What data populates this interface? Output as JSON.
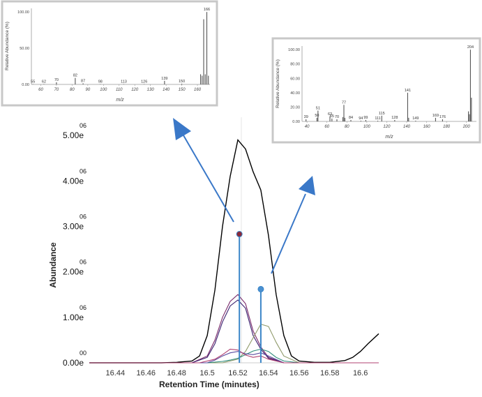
{
  "chart_data": [
    {
      "type": "line",
      "title": "",
      "xlabel": "Retention Time (minutes)",
      "ylabel": "Abundance",
      "xlim": [
        16.423,
        16.612
      ],
      "ylim": [
        0,
        5400000
      ],
      "x_ticks": [
        "16.44",
        "16.46",
        "16.48",
        "16.5",
        "16.52",
        "16.54",
        "16.56",
        "16.58",
        "16.6"
      ],
      "x_tick_values": [
        16.44,
        16.46,
        16.48,
        16.5,
        16.52,
        16.54,
        16.56,
        16.58,
        16.6
      ],
      "y_ticks": [
        {
          "value": 0,
          "mantissa": "0.00e",
          "exponent": "00"
        },
        {
          "value": 1000000,
          "mantissa": "1.00e",
          "exponent": "06"
        },
        {
          "value": 2000000,
          "mantissa": "2.00e",
          "exponent": "06"
        },
        {
          "value": 3000000,
          "mantissa": "3.00e",
          "exponent": "06"
        },
        {
          "value": 4000000,
          "mantissa": "4.00e",
          "exponent": "06"
        },
        {
          "value": 5000000,
          "mantissa": "5.00e",
          "exponent": "06"
        }
      ],
      "series": [
        {
          "color": "#000000",
          "x": [
            16.423,
            16.47,
            16.48,
            16.49,
            16.495,
            16.5,
            16.505,
            16.51,
            16.515,
            16.52,
            16.525,
            16.53,
            16.535,
            16.54,
            16.545,
            16.55,
            16.555,
            16.56,
            16.57,
            16.58,
            16.59,
            16.595,
            16.6,
            16.605,
            16.612
          ],
          "y": [
            0,
            0,
            10000,
            40000,
            150000,
            600000,
            1600000,
            3000000,
            4100000,
            4900000,
            4700000,
            4200000,
            3800000,
            2800000,
            1500000,
            600000,
            150000,
            40000,
            10000,
            10000,
            50000,
            120000,
            250000,
            420000,
            640000
          ]
        },
        {
          "color": "#7a2a6a",
          "x": [
            16.423,
            16.49,
            16.5,
            16.505,
            16.51,
            16.515,
            16.52,
            16.525,
            16.53,
            16.535,
            16.54,
            16.55,
            16.612
          ],
          "y": [
            0,
            0,
            150000,
            500000,
            1000000,
            1350000,
            1500000,
            1300000,
            700000,
            350000,
            120000,
            0,
            0
          ]
        },
        {
          "color": "#3a2070",
          "x": [
            16.423,
            16.49,
            16.5,
            16.505,
            16.51,
            16.515,
            16.52,
            16.525,
            16.53,
            16.535,
            16.54,
            16.55,
            16.612
          ],
          "y": [
            0,
            0,
            120000,
            420000,
            900000,
            1250000,
            1380000,
            1200000,
            600000,
            300000,
            100000,
            0,
            0
          ]
        },
        {
          "color": "#8f9a6a",
          "x": [
            16.423,
            16.51,
            16.52,
            16.525,
            16.53,
            16.535,
            16.54,
            16.545,
            16.55,
            16.56,
            16.612
          ],
          "y": [
            0,
            0,
            80000,
            250000,
            550000,
            850000,
            800000,
            450000,
            150000,
            0,
            0
          ]
        },
        {
          "color": "#2a8a7a",
          "x": [
            16.423,
            16.5,
            16.51,
            16.515,
            16.52,
            16.525,
            16.53,
            16.535,
            16.54,
            16.545,
            16.55,
            16.56,
            16.612
          ],
          "y": [
            0,
            0,
            30000,
            60000,
            100000,
            180000,
            260000,
            300000,
            250000,
            120000,
            40000,
            0,
            0
          ]
        },
        {
          "color": "#5a4aa0",
          "x": [
            16.423,
            16.5,
            16.505,
            16.51,
            16.515,
            16.52,
            16.525,
            16.53,
            16.535,
            16.54,
            16.55,
            16.612
          ],
          "y": [
            0,
            0,
            60000,
            150000,
            220000,
            250000,
            200000,
            180000,
            220000,
            150000,
            0,
            0
          ]
        },
        {
          "color": "#b04070",
          "x": [
            16.423,
            16.495,
            16.505,
            16.51,
            16.515,
            16.52,
            16.525,
            16.53,
            16.535,
            16.54,
            16.55,
            16.612
          ],
          "y": [
            0,
            0,
            80000,
            180000,
            300000,
            280000,
            170000,
            120000,
            150000,
            80000,
            0,
            0
          ]
        }
      ],
      "markers": [
        {
          "x": 16.521,
          "y": 2830000,
          "fill": "#8a2a3a",
          "stem": "#3b86c8"
        },
        {
          "x": 16.535,
          "y": 1620000,
          "fill": "#4a90d0",
          "stem": "#3b86c8"
        }
      ]
    },
    {
      "type": "bar",
      "title": "",
      "xlabel": "m/z",
      "ylabel": "Relative Abundance (%)",
      "xlim": [
        54,
        168
      ],
      "ylim": [
        0,
        105
      ],
      "x_ticks": [
        "60",
        "70",
        "80",
        "90",
        "100",
        "110",
        "120",
        "130",
        "140",
        "150",
        "160"
      ],
      "y_ticks": [
        "0.00",
        "50.00",
        "100.00"
      ],
      "peaks": [
        {
          "mz": 55,
          "value": 0.5,
          "label": "55"
        },
        {
          "mz": 62,
          "value": 0.6,
          "label": "62"
        },
        {
          "mz": 70,
          "value": 3,
          "label": "70"
        },
        {
          "mz": 82,
          "value": 9,
          "label": "82"
        },
        {
          "mz": 87,
          "value": 1.5,
          "label": "87"
        },
        {
          "mz": 98,
          "value": 0.5,
          "label": "98"
        },
        {
          "mz": 113,
          "value": 0.5,
          "label": "113"
        },
        {
          "mz": 126,
          "value": 0.5,
          "label": "126"
        },
        {
          "mz": 139,
          "value": 5,
          "label": "139"
        },
        {
          "mz": 150,
          "value": 1,
          "label": "150"
        },
        {
          "mz": 162,
          "value": 14,
          "label": ""
        },
        {
          "mz": 163,
          "value": 12,
          "label": ""
        },
        {
          "mz": 164,
          "value": 90,
          "label": ""
        },
        {
          "mz": 165,
          "value": 14,
          "label": ""
        },
        {
          "mz": 166,
          "value": 100,
          "label": "166"
        },
        {
          "mz": 167,
          "value": 12,
          "label": ""
        }
      ]
    },
    {
      "type": "bar",
      "title": "",
      "xlabel": "m/z",
      "ylabel": "Relative Abundance (%)",
      "xlim": [
        35,
        210
      ],
      "ylim": [
        0,
        105
      ],
      "x_ticks": [
        "40",
        "60",
        "80",
        "100",
        "120",
        "140",
        "160",
        "180",
        "200"
      ],
      "y_ticks": [
        "0.00",
        "20.00",
        "40.00",
        "60.00",
        "80.00",
        "100.00"
      ],
      "peaks": [
        {
          "mz": 39,
          "value": 3,
          "label": "39"
        },
        {
          "mz": 50,
          "value": 5,
          "label": "50"
        },
        {
          "mz": 51,
          "value": 15,
          "label": "51"
        },
        {
          "mz": 63,
          "value": 7,
          "label": "63"
        },
        {
          "mz": 65,
          "value": 4,
          "label": "65"
        },
        {
          "mz": 70,
          "value": 3,
          "label": "70"
        },
        {
          "mz": 76,
          "value": 6,
          "label": ""
        },
        {
          "mz": 77,
          "value": 23,
          "label": "77"
        },
        {
          "mz": 78,
          "value": 5,
          "label": ""
        },
        {
          "mz": 84,
          "value": 2,
          "label": "84"
        },
        {
          "mz": 94,
          "value": 1,
          "label": "94"
        },
        {
          "mz": 99,
          "value": 2,
          "label": "99"
        },
        {
          "mz": 111,
          "value": 1,
          "label": "111"
        },
        {
          "mz": 115,
          "value": 8,
          "label": "115"
        },
        {
          "mz": 128,
          "value": 2,
          "label": "128"
        },
        {
          "mz": 141,
          "value": 40,
          "label": "141"
        },
        {
          "mz": 142,
          "value": 5,
          "label": ""
        },
        {
          "mz": 149,
          "value": 1,
          "label": "149"
        },
        {
          "mz": 169,
          "value": 5,
          "label": "169"
        },
        {
          "mz": 176,
          "value": 3,
          "label": "176"
        },
        {
          "mz": 202,
          "value": 14,
          "label": ""
        },
        {
          "mz": 203,
          "value": 10,
          "label": ""
        },
        {
          "mz": 204,
          "value": 100,
          "label": "204"
        },
        {
          "mz": 205,
          "value": 33,
          "label": ""
        }
      ]
    }
  ],
  "colors": {
    "arrow": "#3a78c8",
    "stem": "#3b86c8",
    "panel_border": "#c8c8c8",
    "spectrum_bar": "#555555"
  }
}
